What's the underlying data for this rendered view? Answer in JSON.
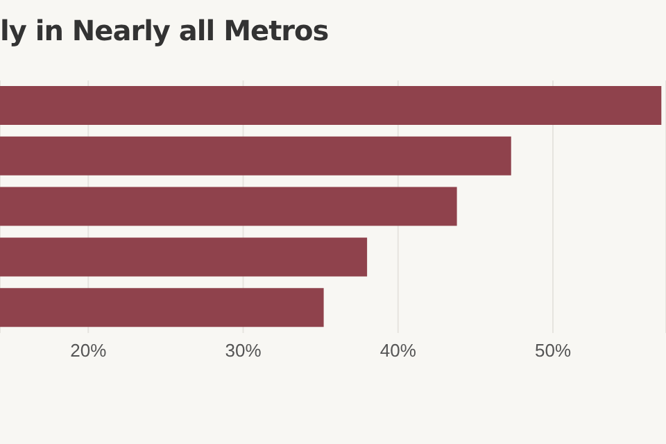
{
  "chart_data": {
    "type": "bar",
    "orientation": "horizontal",
    "title": "ly in Nearly all Metros",
    "categories": [
      null,
      null,
      null,
      null,
      null
    ],
    "values": [
      57,
      47.3,
      43.8,
      38,
      35.2
    ],
    "color": "#8f424c",
    "xlim": [
      14.3,
      57.3
    ],
    "xticks": [
      {
        "value": 20,
        "label": "20%"
      },
      {
        "value": 30,
        "label": "30%"
      },
      {
        "value": 40,
        "label": "40%"
      },
      {
        "value": 50,
        "label": "50%"
      }
    ],
    "grid": "x",
    "tick_labels": "x"
  }
}
